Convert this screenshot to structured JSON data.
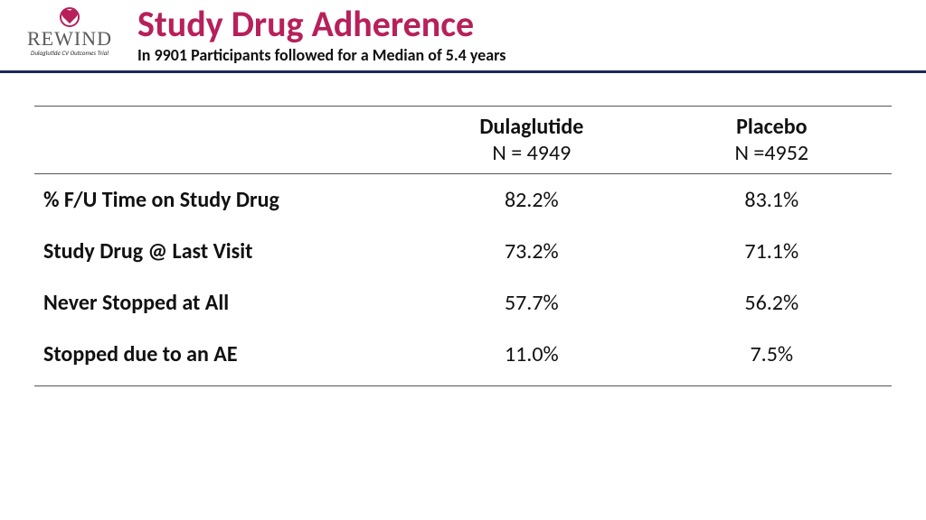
{
  "logo": {
    "name": "REWIND",
    "tagline": "Dulaglutide CV Outcomes Trial"
  },
  "header": {
    "title": "Study Drug Adherence",
    "subtitle": "In 9901 Participants followed for a Median of 5.4 years"
  },
  "table": {
    "type": "table",
    "background_color": "#ffffff",
    "text_color": "#111111",
    "rule_color": "#555555",
    "header_fontsize": 24,
    "body_fontsize": 24,
    "columns": [
      {
        "name": "Dulaglutide",
        "sub": "N = 4949",
        "align": "center"
      },
      {
        "name": "Placebo",
        "sub": "N =4952",
        "align": "center"
      }
    ],
    "rows": [
      {
        "label": "% F/U  Time on Study Drug",
        "v1": "82.2%",
        "v2": "83.1%"
      },
      {
        "label": "Study Drug @ Last Visit",
        "v1": "73.2%",
        "v2": "71.1%"
      },
      {
        "label": "Never Stopped at All",
        "v1": "57.7%",
        "v2": "56.2%"
      },
      {
        "label": "Stopped due to an AE",
        "v1": "11.0%",
        "v2": "7.5%"
      }
    ]
  },
  "colors": {
    "accent": "#b7205b",
    "header_rule": "#1a2a57"
  }
}
